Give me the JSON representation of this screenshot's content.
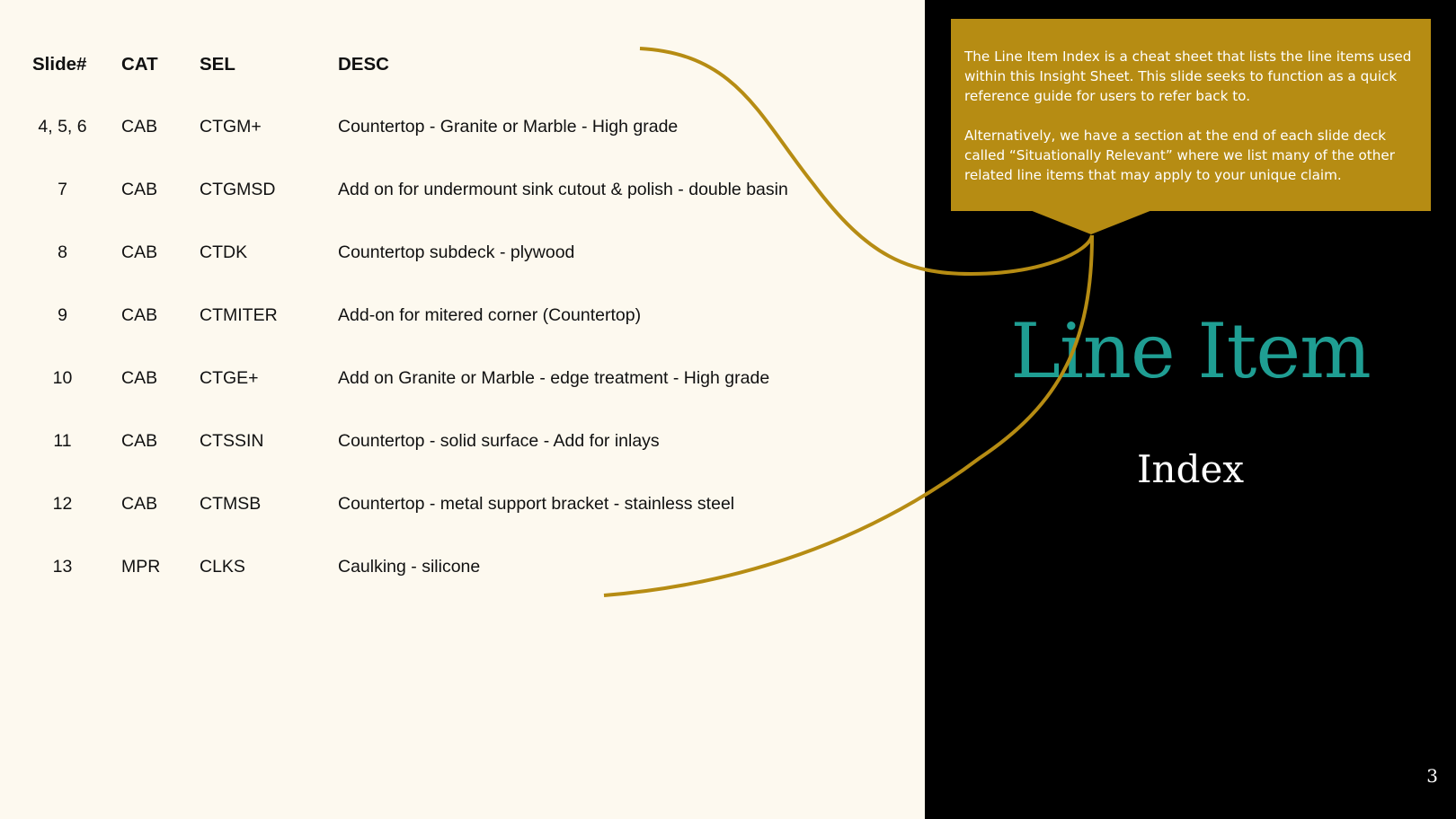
{
  "table": {
    "headers": {
      "slide": "Slide#",
      "cat": "CAT",
      "sel": "SEL",
      "desc": "DESC"
    },
    "rows": [
      {
        "slide": "4, 5, 6",
        "cat": "CAB",
        "sel": "CTGM+",
        "desc": "Countertop - Granite or Marble - High grade"
      },
      {
        "slide": "7",
        "cat": "CAB",
        "sel": "CTGMSD",
        "desc": "Add on for undermount sink cutout & polish - double basin"
      },
      {
        "slide": "8",
        "cat": "CAB",
        "sel": "CTDK",
        "desc": "Countertop subdeck - plywood"
      },
      {
        "slide": "9",
        "cat": "CAB",
        "sel": "CTMITER",
        "desc": "Add-on for mitered corner (Countertop)"
      },
      {
        "slide": "10",
        "cat": "CAB",
        "sel": "CTGE+",
        "desc": "Add on Granite or Marble - edge treatment - High grade"
      },
      {
        "slide": "11",
        "cat": "CAB",
        "sel": "CTSSIN",
        "desc": "Countertop - solid surface - Add for inlays"
      },
      {
        "slide": "12",
        "cat": "CAB",
        "sel": "CTMSB",
        "desc": "Countertop - metal support bracket - stainless steel"
      },
      {
        "slide": "13",
        "cat": "MPR",
        "sel": "CLKS",
        "desc": "Caulking - silicone"
      }
    ]
  },
  "callout": {
    "paragraph_1": "The Line Item Index is a cheat sheet that lists the line items used within this Insight Sheet. This slide seeks to function as a quick reference guide for users to refer back to.",
    "paragraph_2": "Alternatively, we have a section at the end of each slide deck called  “Situationally Relevant” where we list many of the other related line items that may apply to your unique claim."
  },
  "title": "Line Item",
  "subtitle": "Index",
  "page_number": "3",
  "colors": {
    "background_left": "#fdf9ef",
    "background_right": "#000000",
    "accent_gold": "#b68c13",
    "title_teal": "#1f9e93"
  }
}
